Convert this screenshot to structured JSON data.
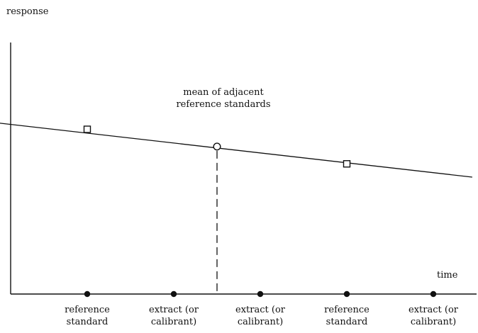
{
  "labels": {
    "y_axis": "response",
    "x_axis": "time",
    "annotation": "mean of adjacent\nreference standards"
  },
  "points": [
    {
      "kind": "reference",
      "shape": "square",
      "label": "reference\nstandard",
      "t": 1.0,
      "response": 0.62
    },
    {
      "kind": "extract",
      "shape": "none",
      "label": "extract (or\ncalibrant)",
      "t": 2.0,
      "response": null
    },
    {
      "kind": "mean",
      "shape": "circle",
      "label": "",
      "t": 2.5,
      "response": 0.555
    },
    {
      "kind": "extract",
      "shape": "none",
      "label": "extract (or\ncalibrant)",
      "t": 3.0,
      "response": null
    },
    {
      "kind": "reference",
      "shape": "square",
      "label": "reference\nstandard",
      "t": 4.0,
      "response": 0.49
    },
    {
      "kind": "extract",
      "shape": "none",
      "label": "extract (or\ncalibrant)",
      "t": 5.0,
      "response": null
    }
  ],
  "trend_line": {
    "from": {
      "t": -0.6,
      "response": 0.665
    },
    "to": {
      "t": 5.45,
      "response": 0.44
    }
  },
  "colors": {
    "ink": "#111111",
    "paper": "#ffffff"
  }
}
